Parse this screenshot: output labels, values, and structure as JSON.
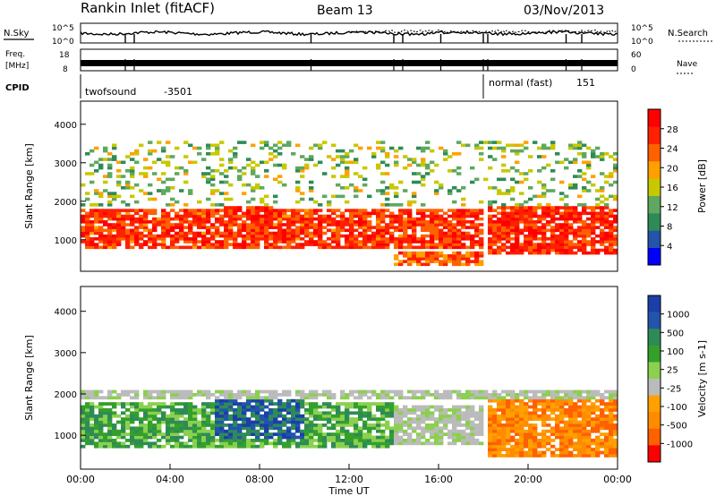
{
  "header": {
    "station": "Rankin Inlet (fitACF)",
    "beam": "Beam 13",
    "date": "03/Nov/2013"
  },
  "noise_panel": {
    "left_label": "N.Sky",
    "left_ticks": [
      "10^5",
      "10^0"
    ],
    "right_ticks": [
      "10^5",
      "10^0"
    ],
    "right_label": "N.Search",
    "right_legend_style": "dotted"
  },
  "freq_panel": {
    "left_label_line1": "Freq.",
    "left_label_line2": "[MHz]",
    "left_ticks": [
      "18",
      "8"
    ],
    "right_ticks": [
      "60",
      "0"
    ],
    "right_label": "Nave",
    "right_legend_style": "dotted"
  },
  "cpid": {
    "label": "CPID",
    "modes": [
      {
        "name": "twofsound",
        "id": "-3501",
        "start_hour": 0,
        "end_hour": 18
      },
      {
        "name": "normal (fast)",
        "id": "151",
        "start_hour": 18,
        "end_hour": 24
      }
    ]
  },
  "colors": {
    "power_scale": [
      "#0000ff",
      "#2255aa",
      "#2e8b57",
      "#5fa85f",
      "#c8c800",
      "#ffa000",
      "#ff6000",
      "#ff2000",
      "#ff0000"
    ],
    "velocity_scale": [
      "#ff0000",
      "#ff6000",
      "#ff8c00",
      "#ffa000",
      "#bbbbbb",
      "#8bd04e",
      "#33a02c",
      "#2e8b57",
      "#2255aa",
      "#1a3fa8"
    ]
  },
  "chart_data": [
    {
      "type": "heatmap",
      "name": "power",
      "title": "",
      "xlabel": "",
      "ylabel": "Slant Range [km]",
      "xlim": [
        "00:00",
        "24:00"
      ],
      "ylim": [
        180,
        4600
      ],
      "yticks": [
        "1000",
        "2000",
        "3000",
        "4000"
      ],
      "colorbar": {
        "label": "Power [dB]",
        "range": [
          0,
          32
        ],
        "ticks": [
          "4",
          "8",
          "12",
          "16",
          "20",
          "24",
          "28"
        ]
      },
      "bands": [
        {
          "x_start_h": 0.0,
          "x_end_h": 18.0,
          "range_from_km": 800,
          "range_to_km": 1800,
          "level": "strong",
          "approx_db": 26
        },
        {
          "x_start_h": 6.5,
          "x_end_h": 8.5,
          "range_from_km": 800,
          "range_to_km": 2100,
          "level": "strong",
          "approx_db": 26
        },
        {
          "x_start_h": 18.2,
          "x_end_h": 24.0,
          "range_from_km": 600,
          "range_to_km": 1900,
          "level": "strong",
          "approx_db": 27
        },
        {
          "x_start_h": 0.0,
          "x_end_h": 24.0,
          "range_from_km": 1900,
          "range_to_km": 3600,
          "level": "patchy",
          "approx_db": 14
        },
        {
          "x_start_h": 14.0,
          "x_end_h": 18.0,
          "range_from_km": 300,
          "range_to_km": 700,
          "level": "strong",
          "approx_db": 24
        }
      ]
    },
    {
      "type": "heatmap",
      "name": "velocity",
      "title": "",
      "xlabel": "Time UT",
      "ylabel": "Slant Range [km]",
      "xlim": [
        "00:00",
        "24:00"
      ],
      "xticks": [
        "00:00",
        "04:00",
        "08:00",
        "12:00",
        "16:00",
        "20:00",
        "00:00"
      ],
      "ylim": [
        180,
        4600
      ],
      "yticks": [
        "1000",
        "2000",
        "3000",
        "4000"
      ],
      "colorbar": {
        "label": "Velocity [m s-1]",
        "range": [
          -1200,
          1200
        ],
        "ticks": [
          "1000",
          "500",
          "100",
          "25",
          "-25",
          "-100",
          "-500",
          "-1000"
        ]
      },
      "bands": [
        {
          "x_start_h": 0.0,
          "x_end_h": 14.0,
          "range_from_km": 700,
          "range_to_km": 1800,
          "level": "green",
          "approx_ms": 200
        },
        {
          "x_start_h": 6.0,
          "x_end_h": 10.0,
          "range_from_km": 900,
          "range_to_km": 2000,
          "level": "blue",
          "approx_ms": 800
        },
        {
          "x_start_h": 0.0,
          "x_end_h": 24.0,
          "range_from_km": 1900,
          "range_to_km": 2100,
          "level": "grey",
          "approx_ms": 0
        },
        {
          "x_start_h": 14.0,
          "x_end_h": 18.0,
          "range_from_km": 800,
          "range_to_km": 1700,
          "level": "grey",
          "approx_ms": 0
        },
        {
          "x_start_h": 18.2,
          "x_end_h": 24.0,
          "range_from_km": 500,
          "range_to_km": 1900,
          "level": "orange",
          "approx_ms": -300
        }
      ]
    }
  ]
}
